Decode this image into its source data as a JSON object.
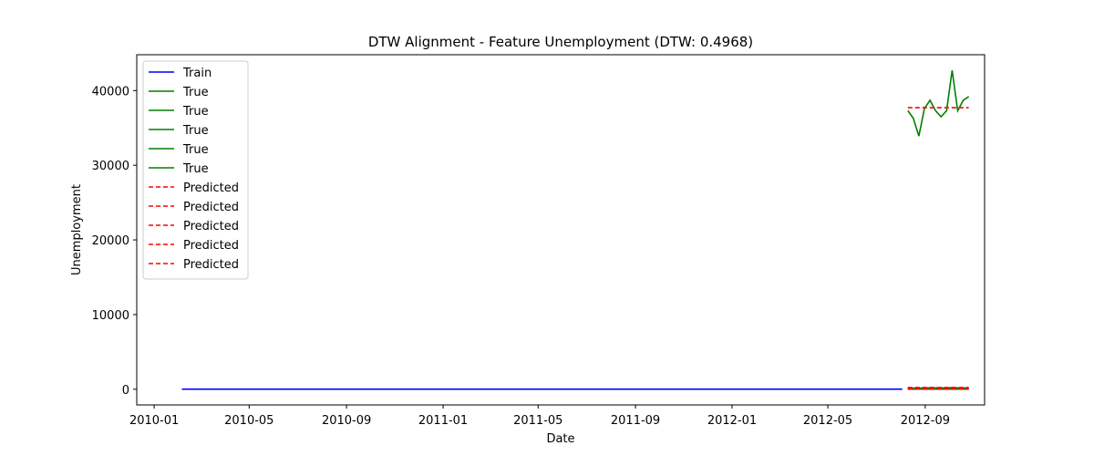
{
  "chart_data": {
    "type": "line",
    "title": "DTW Alignment - Feature Unemployment (DTW: 0.4968)",
    "xlabel": "Date",
    "ylabel": "Unemployment",
    "xlim": [
      "2009-12-10",
      "2012-11-15"
    ],
    "ylim": [
      -2100,
      44800
    ],
    "x_ticks": [
      "2010-01",
      "2010-05",
      "2010-09",
      "2011-01",
      "2011-05",
      "2011-09",
      "2012-01",
      "2012-05",
      "2012-09"
    ],
    "y_ticks": [
      0,
      10000,
      20000,
      30000,
      40000
    ],
    "grid": false,
    "legend": "top-left",
    "series": [
      {
        "name": "Train",
        "color": "#0000ff",
        "style": "solid",
        "x": [
          "2010-02-05",
          "2012-08-03"
        ],
        "y": [
          8,
          8
        ]
      },
      {
        "name": "True",
        "color": "#008000",
        "style": "solid",
        "x": [
          "2012-08-10",
          "2012-08-17",
          "2012-08-24",
          "2012-08-31",
          "2012-09-07",
          "2012-09-14",
          "2012-09-21",
          "2012-09-28",
          "2012-10-05",
          "2012-10-12",
          "2012-10-19",
          "2012-10-26"
        ],
        "y": [
          37300,
          36300,
          33900,
          37600,
          38700,
          37300,
          36500,
          37300,
          42700,
          37300,
          38700,
          39200
        ]
      },
      {
        "name": "True",
        "color": "#008000",
        "style": "solid",
        "x": [
          "2012-08-10",
          "2012-08-24",
          "2012-09-07",
          "2012-09-21",
          "2012-10-05",
          "2012-10-19",
          "2012-10-26"
        ],
        "y": [
          180,
          120,
          200,
          150,
          210,
          140,
          170
        ]
      },
      {
        "name": "True",
        "color": "#008000",
        "style": "solid",
        "x": [
          "2012-08-10",
          "2012-08-24",
          "2012-09-07",
          "2012-09-21",
          "2012-10-05",
          "2012-10-19",
          "2012-10-26"
        ],
        "y": [
          90,
          160,
          110,
          190,
          120,
          180,
          100
        ]
      },
      {
        "name": "True",
        "color": "#008000",
        "style": "solid",
        "x": [
          "2012-08-10",
          "2012-08-24",
          "2012-09-07",
          "2012-09-21",
          "2012-10-05",
          "2012-10-19",
          "2012-10-26"
        ],
        "y": [
          40,
          60,
          30,
          70,
          45,
          65,
          50
        ]
      },
      {
        "name": "True",
        "color": "#008000",
        "style": "solid",
        "x": [
          "2012-08-10",
          "2012-08-24",
          "2012-09-07",
          "2012-09-21",
          "2012-10-05",
          "2012-10-19",
          "2012-10-26"
        ],
        "y": [
          10,
          15,
          8,
          12,
          10,
          14,
          9
        ]
      },
      {
        "name": "Predicted",
        "color": "#ff0000",
        "style": "dashed",
        "x": [
          "2012-08-10",
          "2012-10-26"
        ],
        "y": [
          37700,
          37700
        ]
      },
      {
        "name": "Predicted",
        "color": "#ff0000",
        "style": "dashed",
        "x": [
          "2012-08-10",
          "2012-10-26"
        ],
        "y": [
          230,
          230
        ]
      },
      {
        "name": "Predicted",
        "color": "#ff0000",
        "style": "dashed",
        "x": [
          "2012-08-10",
          "2012-10-26"
        ],
        "y": [
          140,
          140
        ]
      },
      {
        "name": "Predicted",
        "color": "#ff0000",
        "style": "dashed",
        "x": [
          "2012-08-10",
          "2012-10-26"
        ],
        "y": [
          60,
          60
        ]
      },
      {
        "name": "Predicted",
        "color": "#ff0000",
        "style": "dashed",
        "x": [
          "2012-08-10",
          "2012-10-26"
        ],
        "y": [
          15,
          15
        ]
      }
    ]
  }
}
